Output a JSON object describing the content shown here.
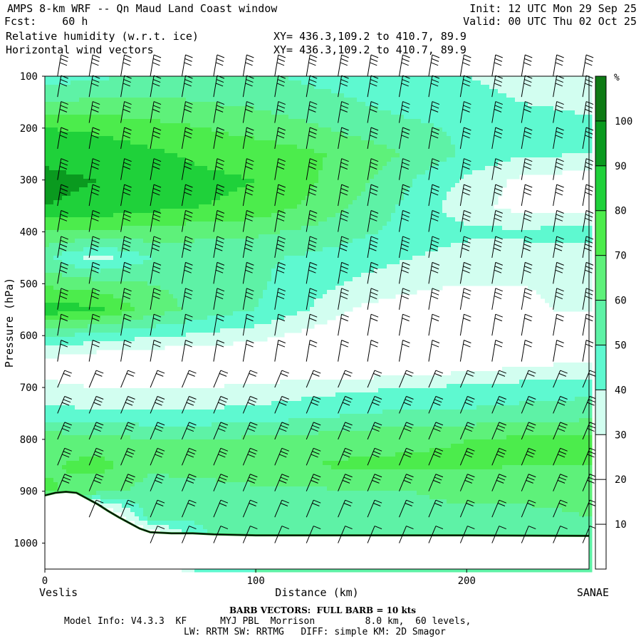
{
  "header": {
    "title": "AMPS 8-km WRF -- Qn Maud Land Coast window",
    "fcst": "Fcst:    60 h",
    "field1": "Relative humidity (w.r.t. ice)",
    "field2": "Horizontal wind vectors",
    "init": "Init: 12 UTC Mon 29 Sep 25",
    "valid": "Valid: 00 UTC Thu 02 Oct 25",
    "xy1": "XY= 436.3,109.2 to 410.7, 89.9",
    "xy2": "XY= 436.3,109.2 to 410.7, 89.9"
  },
  "footer": {
    "barb_note": "BARB VECTORS:  FULL BARB = 10 kts",
    "model_line": "Model Info: V4.3.3  KF      MYJ PBL  Morrison         8.0 km,  60 levels,",
    "physics_line": "LW: RRTM SW: RRTMG   DIFF: simple KM: 2D Smagor"
  },
  "chart_data": {
    "type": "heatmap",
    "xlabel": "Distance (km)",
    "ylabel": "Pressure (hPa)",
    "xlim": [
      0,
      258
    ],
    "ylim": [
      1050,
      100
    ],
    "x_ticks": [
      0,
      100,
      200
    ],
    "y_ticks": [
      100,
      200,
      300,
      400,
      500,
      600,
      700,
      800,
      900,
      1000
    ],
    "left_endpoint": "Veslis",
    "right_endpoint": "SANAE",
    "colorbar": {
      "unit": "%",
      "levels": [
        0,
        10,
        20,
        30,
        40,
        50,
        60,
        70,
        80,
        90,
        100,
        110
      ],
      "tick_labels": [
        10,
        20,
        30,
        40,
        50,
        60,
        70,
        80,
        90,
        100
      ],
      "colors": [
        "#ffffff",
        "#ffffff",
        "#ffffff",
        "#d2fef0",
        "#5ef9d0",
        "#5ef2a6",
        "#5ef17a",
        "#4cec4c",
        "#1fd13a",
        "#0a9a1f",
        "#0e7a14",
        "#3d6b12"
      ]
    },
    "rh_grid": {
      "x": [
        0,
        25,
        50,
        75,
        100,
        125,
        150,
        175,
        200,
        225,
        258
      ],
      "p": [
        100,
        150,
        200,
        250,
        300,
        350,
        400,
        450,
        500,
        550,
        600,
        650,
        700,
        750,
        800,
        850,
        900,
        950,
        1000
      ],
      "values": [
        [
          45,
          48,
          52,
          55,
          52,
          48,
          45,
          42,
          40,
          38,
          38
        ],
        [
          60,
          62,
          62,
          60,
          58,
          54,
          50,
          46,
          42,
          40,
          38
        ],
        [
          80,
          78,
          74,
          70,
          66,
          62,
          56,
          52,
          48,
          44,
          42
        ],
        [
          88,
          86,
          82,
          78,
          76,
          72,
          66,
          58,
          48,
          42,
          40
        ],
        [
          92,
          90,
          86,
          82,
          80,
          72,
          62,
          50,
          38,
          28,
          24
        ],
        [
          90,
          88,
          84,
          80,
          78,
          68,
          58,
          46,
          34,
          26,
          24
        ],
        [
          70,
          68,
          66,
          64,
          62,
          58,
          52,
          46,
          42,
          42,
          44
        ],
        [
          52,
          36,
          50,
          52,
          52,
          48,
          44,
          40,
          36,
          36,
          36
        ],
        [
          68,
          64,
          60,
          56,
          52,
          44,
          38,
          34,
          30,
          30,
          32
        ],
        [
          86,
          82,
          66,
          56,
          50,
          40,
          28,
          22,
          18,
          28,
          32
        ],
        [
          52,
          46,
          42,
          38,
          34,
          26,
          18,
          16,
          16,
          16,
          18
        ],
        [
          26,
          20,
          18,
          16,
          16,
          16,
          16,
          18,
          22,
          26,
          30
        ],
        [
          32,
          30,
          30,
          30,
          32,
          36,
          38,
          40,
          42,
          44,
          46
        ],
        [
          44,
          42,
          42,
          42,
          44,
          46,
          50,
          52,
          52,
          54,
          56
        ],
        [
          66,
          64,
          60,
          60,
          62,
          64,
          66,
          68,
          70,
          72,
          72
        ],
        [
          68,
          74,
          62,
          64,
          66,
          70,
          72,
          72,
          72,
          70,
          70
        ],
        [
          72,
          64,
          56,
          56,
          58,
          58,
          60,
          60,
          62,
          62,
          62
        ],
        [
          0,
          0,
          56,
          52,
          54,
          54,
          56,
          58,
          58,
          58,
          60
        ],
        [
          0,
          0,
          0,
          48,
          50,
          50,
          52,
          52,
          54,
          54,
          56
        ]
      ]
    },
    "terrain": {
      "x": [
        0,
        5,
        10,
        15,
        20,
        25,
        30,
        35,
        40,
        45,
        50,
        60,
        70,
        80,
        100,
        150,
        200,
        258
      ],
      "p": [
        908,
        903,
        901,
        903,
        914,
        925,
        938,
        950,
        961,
        972,
        979,
        981,
        981,
        983,
        985,
        985,
        985,
        986
      ]
    },
    "wind_barbs": {
      "columns_km": [
        6,
        21,
        36,
        50,
        65,
        80,
        94,
        109,
        124,
        139,
        153,
        168,
        182,
        197,
        212,
        226,
        241,
        255
      ],
      "levels_hPa": [
        100,
        140,
        190,
        240,
        300,
        350,
        400,
        450,
        500,
        550,
        600,
        650,
        700,
        750,
        800,
        850,
        900,
        950,
        1000
      ],
      "speed_kts": [
        30,
        30,
        30,
        30,
        30,
        30,
        30,
        40,
        30,
        30,
        20,
        20,
        20,
        30,
        30,
        30,
        30,
        20,
        10
      ],
      "direction_hint": "westerly to southwesterly aloft, southeasterly near surface"
    }
  }
}
